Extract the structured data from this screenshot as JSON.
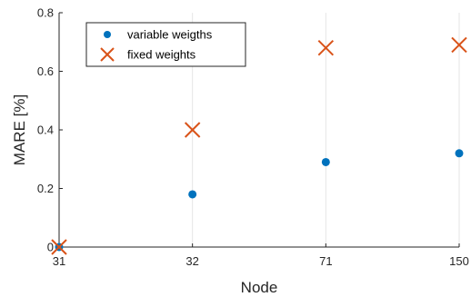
{
  "chart_data": {
    "type": "scatter",
    "title": "",
    "xlabel": "Node",
    "ylabel": "MARE [%]",
    "categories": [
      "31",
      "32",
      "71",
      "150"
    ],
    "ylim": [
      0,
      0.8
    ],
    "yticks": [
      "0",
      "0.2",
      "0.4",
      "0.6",
      "0.8"
    ],
    "grid": "vertical",
    "legend_position": "top-left",
    "series": [
      {
        "name": "variable weigths",
        "marker": "dot",
        "color": "#0072BD",
        "values": [
          0,
          0.18,
          0.29,
          0.32
        ]
      },
      {
        "name": "fixed weights",
        "marker": "x",
        "color": "#D95319",
        "values": [
          0,
          0.4,
          0.68,
          0.69
        ]
      }
    ]
  }
}
